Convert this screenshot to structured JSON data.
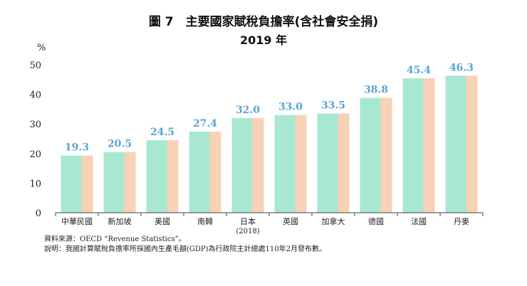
{
  "chart_data": {
    "type": "bar",
    "title": "圖 7　主要國家賦稅負擔率(含社會安全捐)",
    "subtitle": "2019 年",
    "ylabel": "%",
    "ylim": [
      0,
      50
    ],
    "yticks": [
      0,
      10,
      20,
      30,
      40,
      50
    ],
    "categories": [
      "中華民國",
      "新加坡",
      "美國",
      "南韓",
      "日本",
      "英國",
      "加拿大",
      "德國",
      "法國",
      "丹麥"
    ],
    "category_notes": [
      "",
      "",
      "",
      "",
      "(2018)",
      "",
      "",
      "",
      "",
      ""
    ],
    "values": [
      19.3,
      20.5,
      24.5,
      27.4,
      32.0,
      33.0,
      33.5,
      38.8,
      45.4,
      46.3
    ],
    "value_labels": [
      "19.3",
      "20.5",
      "24.5",
      "27.4",
      "32.0",
      "33.0",
      "33.5",
      "38.8",
      "45.4",
      "46.3"
    ],
    "colors": {
      "bar_main": "#a8e8d2",
      "bar_side": "#f8d2b6",
      "label": "#5aa2d8",
      "axis": "#444444"
    }
  },
  "source_note": "資料來源：OECD “Revenue Statistics”。",
  "explanation_note": "說明：我國計算賦稅負擔率所採國內生產毛額(GDP)為行政院主計總處110年2月發布數。"
}
